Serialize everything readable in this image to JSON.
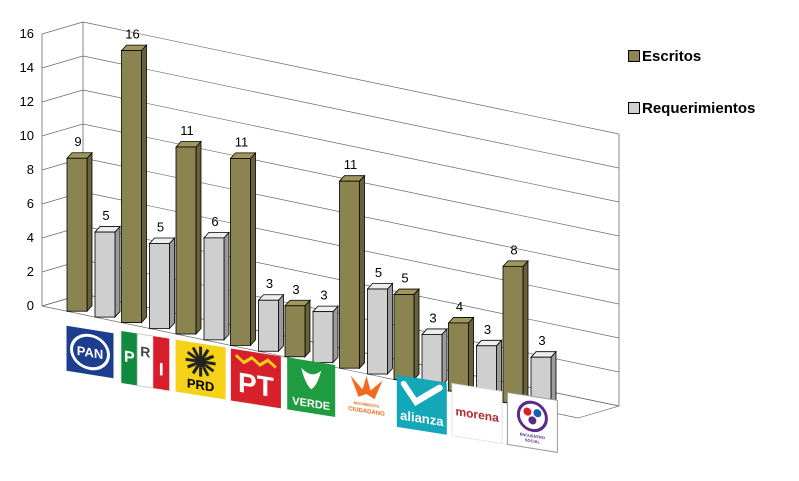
{
  "chart_data": {
    "type": "bar",
    "categories": [
      "PAN",
      "PRI",
      "PRD",
      "PT",
      "VERDE",
      "MOVIMIENTO CIUDADANO",
      "alianza",
      "morena",
      "ENCUENTRO SOCIAL"
    ],
    "series": [
      {
        "name": "Escritos",
        "values": [
          9,
          16,
          11,
          11,
          3,
          11,
          5,
          4,
          8
        ],
        "color": "#8b8350"
      },
      {
        "name": "Requerimientos",
        "values": [
          5,
          5,
          6,
          3,
          3,
          5,
          3,
          3,
          3
        ],
        "color": "#cfcfcf"
      }
    ],
    "ylim": [
      0,
      16
    ],
    "yticks": [
      "0",
      "2",
      "4",
      "6",
      "8",
      "10",
      "12",
      "14",
      "16"
    ],
    "grid": true,
    "legend": "right",
    "category_icons": [
      "pan-logo-icon",
      "pri-logo-icon",
      "prd-logo-icon",
      "pt-logo-icon",
      "verde-logo-icon",
      "movimiento-ciudadano-logo-icon",
      "nueva-alianza-logo-icon",
      "morena-logo-icon",
      "encuentro-social-logo-icon"
    ],
    "logo_text": {
      "pan": "PAN",
      "pri": [
        "P",
        "R",
        "I"
      ],
      "prd": "PRD",
      "pt": "PT",
      "verde": "VERDE",
      "mc": [
        "MOVIMIENTO",
        "CIUDADANO"
      ],
      "alianza": "alianza",
      "morena": "morena",
      "es": [
        "ENCUENTRO",
        "SOCIAL"
      ]
    }
  },
  "legend": {
    "items": [
      {
        "label": "Escritos",
        "color": "#8b8350"
      },
      {
        "label": "Requerimientos",
        "color": "#cfcfcf"
      }
    ]
  }
}
